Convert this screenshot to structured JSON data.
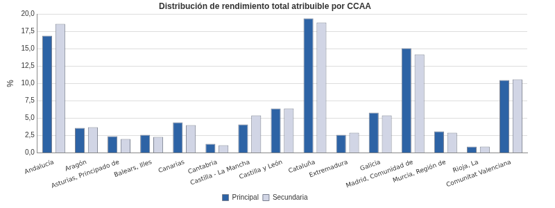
{
  "chart_data": {
    "type": "bar",
    "title": "Distribución de rendimiento total atribuible por CCAA",
    "y_label": "%",
    "categories": [
      "Andalucía",
      "Aragón",
      "Asturias, Principado de",
      "Balears, Illes",
      "Canarias",
      "Cantabria",
      "Castilla - La Mancha",
      "Castilla y León",
      "Cataluña",
      "Extremadura",
      "Galicia",
      "Madrid, Comunidad de",
      "Murcia, Región de",
      "Rioja, La",
      "Comunitat Valenciana"
    ],
    "series": [
      {
        "name": "Principal",
        "color": "#2d63a5",
        "values": [
          16.9,
          3.6,
          2.4,
          2.6,
          4.4,
          1.3,
          4.1,
          6.4,
          19.4,
          2.6,
          5.8,
          15.1,
          3.1,
          0.9,
          10.5
        ]
      },
      {
        "name": "Secundaria",
        "color": "#d1d5e5",
        "values": [
          18.6,
          3.7,
          2.0,
          2.3,
          4.0,
          1.1,
          5.4,
          6.4,
          18.8,
          2.9,
          5.4,
          14.2,
          2.9,
          0.9,
          10.6
        ]
      }
    ],
    "ylim": [
      0,
      20
    ],
    "yticks": [
      {
        "value": 0,
        "label": "0,0"
      },
      {
        "value": 2.5,
        "label": "2,5"
      },
      {
        "value": 5,
        "label": "5,0"
      },
      {
        "value": 7.5,
        "label": "7,5"
      },
      {
        "value": 10,
        "label": "10,0"
      },
      {
        "value": 12.5,
        "label": "12,5"
      },
      {
        "value": 15,
        "label": "15,0"
      },
      {
        "value": 17.5,
        "label": "17,5"
      },
      {
        "value": 20,
        "label": "20,0"
      }
    ],
    "grid": true,
    "legend": "bottom"
  }
}
